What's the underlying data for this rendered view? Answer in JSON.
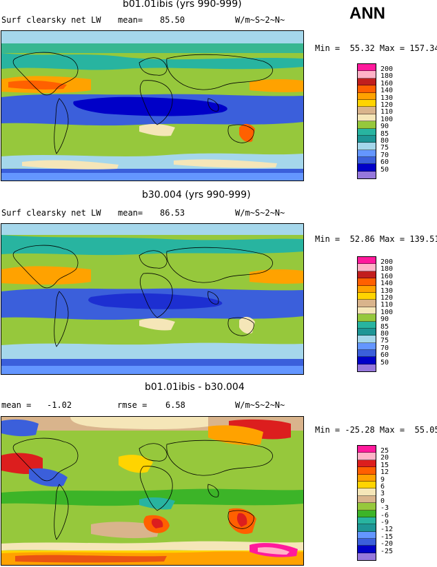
{
  "season": "ANN",
  "panels": [
    {
      "title": "b01.01ibis (yrs 990-999)",
      "left_label": "Surf clearsky net LW",
      "stat_label": "mean=",
      "stat_value": "85.50",
      "units": "W/m~S~2~N~",
      "minmax": "Min =  55.32 Max = 157.34",
      "legend_labels": [
        "200",
        "180",
        "160",
        "140",
        "130",
        "120",
        "110",
        "100",
        "90",
        "85",
        "80",
        "75",
        "70",
        "60",
        "50"
      ]
    },
    {
      "title": "b30.004 (yrs 990-999)",
      "left_label": "Surf clearsky net LW",
      "stat_label": "mean=",
      "stat_value": "86.53",
      "units": "W/m~S~2~N~",
      "minmax": "Min =  52.86 Max = 139.51",
      "legend_labels": [
        "200",
        "180",
        "160",
        "140",
        "130",
        "120",
        "110",
        "100",
        "90",
        "85",
        "80",
        "75",
        "70",
        "60",
        "50"
      ]
    },
    {
      "title": "b01.01ibis - b30.004",
      "left_label": "mean =",
      "left_value": "-1.02",
      "stat_label": "rmse =",
      "stat_value": "6.58",
      "units": "W/m~S~2~N~",
      "minmax": "Min = -25.28 Max =  55.05",
      "legend_labels": [
        "25",
        "20",
        "15",
        "12",
        "9",
        "6",
        "3",
        "0",
        "-3",
        "-6",
        "-9",
        "-12",
        "-15",
        "-20",
        "-25"
      ]
    }
  ],
  "colors": {
    "abs_scale": [
      "#ff1a9c",
      "#ffb3c8",
      "#c11e1e",
      "#ff6000",
      "#ffa200",
      "#ffd400",
      "#d9b48c",
      "#f5e6b8",
      "#96c83c",
      "#28b4a0",
      "#1e9696",
      "#a5d7eb",
      "#6496ff",
      "#3b5fdb",
      "#0000c8",
      "#9678dc"
    ],
    "diff_scale": [
      "#ff1a9c",
      "#ffb3c8",
      "#dc1e1e",
      "#ff6000",
      "#ffa200",
      "#ffd400",
      "#f5e6b8",
      "#d9b48c",
      "#96c83c",
      "#3cb428",
      "#28b4a0",
      "#1e9696",
      "#6496ff",
      "#3b5fdb",
      "#0000c8",
      "#9678dc"
    ]
  }
}
